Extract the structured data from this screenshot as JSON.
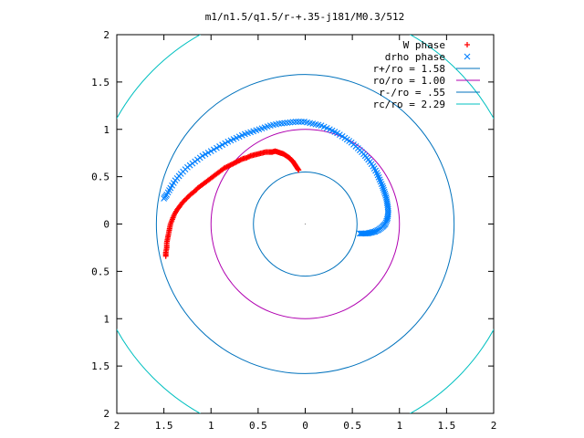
{
  "chart_data": {
    "type": "scatter",
    "title": "m1/n1.5/q1.5/r-+.35-j181/M0.3/512",
    "xlim": [
      -2,
      2
    ],
    "ylim": [
      -2,
      2
    ],
    "xticks": [
      -2,
      -1.5,
      -1,
      -0.5,
      0,
      0.5,
      1,
      1.5,
      2
    ],
    "yticks": [
      -2,
      -1.5,
      -1,
      -0.5,
      0,
      0.5,
      1,
      1.5,
      2
    ],
    "xtick_labels": [
      "2",
      "1.5",
      "1",
      "0.5",
      "0",
      "0.5",
      "1",
      "1.5",
      "2"
    ],
    "ytick_labels": [
      "2",
      "1.5",
      "1",
      "0.5",
      "0",
      "0.5",
      "1",
      "1.5",
      "2"
    ],
    "grid": false,
    "legend_position": "top-right",
    "series": [
      {
        "name": "W phase",
        "marker": "+",
        "color": "#ff0000",
        "points": [
          [
            -0.07,
            0.57
          ],
          [
            -0.09,
            0.6
          ],
          [
            -0.11,
            0.63
          ],
          [
            -0.13,
            0.66
          ],
          [
            -0.15,
            0.68
          ],
          [
            -0.17,
            0.7
          ],
          [
            -0.2,
            0.72
          ],
          [
            -0.23,
            0.74
          ],
          [
            -0.26,
            0.75
          ],
          [
            -0.29,
            0.76
          ],
          [
            -0.32,
            0.77
          ],
          [
            -0.35,
            0.76
          ],
          [
            -0.38,
            0.76
          ],
          [
            -0.42,
            0.76
          ],
          [
            -0.46,
            0.75
          ],
          [
            -0.5,
            0.74
          ],
          [
            -0.54,
            0.73
          ],
          [
            -0.58,
            0.72
          ],
          [
            -0.62,
            0.7
          ],
          [
            -0.66,
            0.69
          ],
          [
            -0.7,
            0.67
          ],
          [
            -0.74,
            0.65
          ],
          [
            -0.78,
            0.63
          ],
          [
            -0.82,
            0.61
          ],
          [
            -0.86,
            0.59
          ],
          [
            -0.9,
            0.56
          ],
          [
            -0.94,
            0.53
          ],
          [
            -0.98,
            0.5
          ],
          [
            -1.02,
            0.47
          ],
          [
            -1.06,
            0.44
          ],
          [
            -1.1,
            0.41
          ],
          [
            -1.14,
            0.38
          ],
          [
            -1.18,
            0.34
          ],
          [
            -1.22,
            0.31
          ],
          [
            -1.26,
            0.27
          ],
          [
            -1.3,
            0.23
          ],
          [
            -1.33,
            0.19
          ],
          [
            -1.36,
            0.15
          ],
          [
            -1.39,
            0.1
          ],
          [
            -1.41,
            0.05
          ],
          [
            -1.43,
            0.0
          ],
          [
            -1.44,
            -0.05
          ],
          [
            -1.45,
            -0.1
          ],
          [
            -1.46,
            -0.15
          ],
          [
            -1.47,
            -0.2
          ],
          [
            -1.47,
            -0.25
          ],
          [
            -1.48,
            -0.3
          ],
          [
            -1.48,
            -0.34
          ]
        ]
      },
      {
        "name": "drho phase",
        "marker": "x",
        "color": "#0080ff",
        "points": [
          [
            0.58,
            -0.1
          ],
          [
            0.62,
            -0.1
          ],
          [
            0.66,
            -0.1
          ],
          [
            0.7,
            -0.09
          ],
          [
            0.74,
            -0.08
          ],
          [
            0.78,
            -0.06
          ],
          [
            0.82,
            -0.03
          ],
          [
            0.85,
            0.0
          ],
          [
            0.87,
            0.05
          ],
          [
            0.88,
            0.1
          ],
          [
            0.88,
            0.16
          ],
          [
            0.87,
            0.22
          ],
          [
            0.86,
            0.28
          ],
          [
            0.84,
            0.34
          ],
          [
            0.82,
            0.4
          ],
          [
            0.79,
            0.47
          ],
          [
            0.76,
            0.54
          ],
          [
            0.72,
            0.61
          ],
          [
            0.67,
            0.68
          ],
          [
            0.62,
            0.74
          ],
          [
            0.56,
            0.8
          ],
          [
            0.49,
            0.86
          ],
          [
            0.42,
            0.91
          ],
          [
            0.34,
            0.96
          ],
          [
            0.26,
            1.0
          ],
          [
            0.17,
            1.04
          ],
          [
            0.08,
            1.06
          ],
          [
            -0.01,
            1.08
          ],
          [
            -0.1,
            1.08
          ],
          [
            -0.19,
            1.07
          ],
          [
            -0.28,
            1.06
          ],
          [
            -0.37,
            1.04
          ],
          [
            -0.46,
            1.01
          ],
          [
            -0.55,
            0.98
          ],
          [
            -0.64,
            0.95
          ],
          [
            -0.73,
            0.91
          ],
          [
            -0.82,
            0.87
          ],
          [
            -0.91,
            0.82
          ],
          [
            -1.0,
            0.77
          ],
          [
            -1.09,
            0.72
          ],
          [
            -1.17,
            0.66
          ],
          [
            -1.25,
            0.6
          ],
          [
            -1.32,
            0.53
          ],
          [
            -1.38,
            0.46
          ],
          [
            -1.43,
            0.38
          ],
          [
            -1.47,
            0.31
          ],
          [
            -1.5,
            0.27
          ]
        ]
      }
    ],
    "circles": [
      {
        "name": "r+/ro = 1.58",
        "radius": 1.58,
        "color": "#0072bd"
      },
      {
        "name": "ro/ro = 1.00",
        "radius": 1.0,
        "color": "#b000b0"
      },
      {
        "name": "r-/ro = .55",
        "radius": 0.55,
        "color": "#0072bd"
      },
      {
        "name": "rc/ro = 2.29",
        "radius": 2.29,
        "color": "#00c0c0"
      }
    ]
  }
}
